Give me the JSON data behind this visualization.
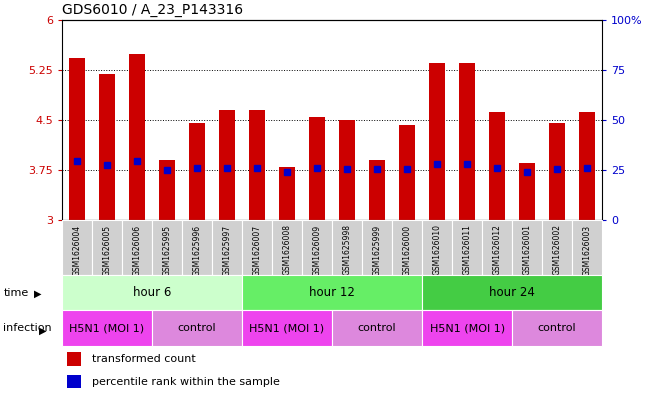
{
  "title": "GDS6010 / A_23_P143316",
  "samples": [
    "GSM1626004",
    "GSM1626005",
    "GSM1626006",
    "GSM1625995",
    "GSM1625996",
    "GSM1625997",
    "GSM1626007",
    "GSM1626008",
    "GSM1626009",
    "GSM1625998",
    "GSM1625999",
    "GSM1626000",
    "GSM1626010",
    "GSM1626011",
    "GSM1626012",
    "GSM1626001",
    "GSM1626002",
    "GSM1626003"
  ],
  "bar_values": [
    5.42,
    5.19,
    5.48,
    3.9,
    4.45,
    4.65,
    4.65,
    3.8,
    4.55,
    4.5,
    3.9,
    4.42,
    5.35,
    5.35,
    4.62,
    3.85,
    4.45,
    4.62
  ],
  "dot_values": [
    3.88,
    3.82,
    3.88,
    3.75,
    3.78,
    3.78,
    3.78,
    3.72,
    3.78,
    3.76,
    3.76,
    3.76,
    3.84,
    3.84,
    3.78,
    3.72,
    3.76,
    3.78
  ],
  "ylim_left": [
    3.0,
    6.0
  ],
  "ylim_right": [
    0,
    100
  ],
  "yticks_left": [
    3.0,
    3.75,
    4.5,
    5.25,
    6.0
  ],
  "yticks_right": [
    0,
    25,
    50,
    75,
    100
  ],
  "ytick_labels_left": [
    "3",
    "3.75",
    "4.5",
    "5.25",
    "6"
  ],
  "ytick_labels_right": [
    "0",
    "25",
    "50",
    "75",
    "100%"
  ],
  "bar_color": "#cc0000",
  "dot_color": "#0000cc",
  "time_groups": [
    {
      "label": "hour 6",
      "start": 0,
      "end": 6,
      "color": "#ccffcc"
    },
    {
      "label": "hour 12",
      "start": 6,
      "end": 12,
      "color": "#66ee66"
    },
    {
      "label": "hour 24",
      "start": 12,
      "end": 18,
      "color": "#44cc44"
    }
  ],
  "infection_groups": [
    {
      "label": "H5N1 (MOI 1)",
      "start": 0,
      "end": 3,
      "color": "#ee44ee"
    },
    {
      "label": "control",
      "start": 3,
      "end": 6,
      "color": "#dd88dd"
    },
    {
      "label": "H5N1 (MOI 1)",
      "start": 6,
      "end": 9,
      "color": "#ee44ee"
    },
    {
      "label": "control",
      "start": 9,
      "end": 12,
      "color": "#dd88dd"
    },
    {
      "label": "H5N1 (MOI 1)",
      "start": 12,
      "end": 15,
      "color": "#ee44ee"
    },
    {
      "label": "control",
      "start": 15,
      "end": 18,
      "color": "#dd88dd"
    }
  ],
  "legend_bar_label": "transformed count",
  "legend_dot_label": "percentile rank within the sample",
  "bar_width": 0.55,
  "tick_label_color_left": "#cc0000",
  "tick_label_color_right": "#0000cc",
  "sample_bg_color": "#d0d0d0",
  "bg_color": "#ffffff"
}
